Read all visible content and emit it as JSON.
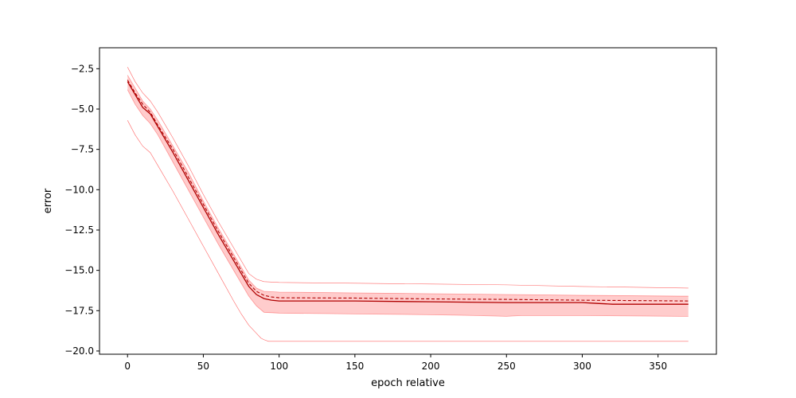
{
  "chart_data": {
    "type": "line",
    "title": "",
    "xlabel": "epoch relative",
    "ylabel": "error",
    "xlim": [
      -18.5,
      388.5
    ],
    "ylim": [
      -20.2,
      -1.2
    ],
    "xticks": [
      0,
      50,
      100,
      150,
      200,
      250,
      300,
      350
    ],
    "xtick_labels": [
      "0",
      "50",
      "100",
      "150",
      "200",
      "250",
      "300",
      "350"
    ],
    "yticks": [
      -2.5,
      -5.0,
      -7.5,
      -10.0,
      -12.5,
      -15.0,
      -17.5,
      -20.0
    ],
    "ytick_labels": [
      "−2.5",
      "−5.0",
      "−7.5",
      "−10.0",
      "−12.5",
      "−15.0",
      "−17.5",
      "−20.0"
    ],
    "grid": false,
    "legend": "none",
    "color": "#ff0000",
    "series": [
      {
        "role": "solid-line",
        "x": [
          0,
          5,
          10,
          15,
          20,
          30,
          40,
          50,
          60,
          70,
          80,
          85,
          90,
          95,
          100,
          120,
          150,
          200,
          250,
          300,
          310,
          320,
          330,
          350,
          370
        ],
        "y": [
          -3.3,
          -4.1,
          -4.9,
          -5.3,
          -6.1,
          -7.7,
          -9.4,
          -11.1,
          -12.8,
          -14.4,
          -16.0,
          -16.5,
          -16.75,
          -16.85,
          -16.9,
          -16.9,
          -16.9,
          -16.95,
          -17.0,
          -17.0,
          -17.05,
          -17.1,
          -17.1,
          -17.1,
          -17.1
        ]
      },
      {
        "role": "dashed-line",
        "x": [
          0,
          5,
          10,
          15,
          20,
          30,
          40,
          50,
          60,
          70,
          80,
          85,
          90,
          95,
          100,
          150,
          200,
          250,
          300,
          370
        ],
        "y": [
          -3.2,
          -4.0,
          -4.7,
          -5.2,
          -6.0,
          -7.5,
          -9.2,
          -10.9,
          -12.6,
          -14.2,
          -15.8,
          -16.3,
          -16.55,
          -16.65,
          -16.7,
          -16.72,
          -16.77,
          -16.8,
          -16.85,
          -16.9
        ]
      },
      {
        "role": "band-upper",
        "x": [
          0,
          5,
          10,
          15,
          20,
          30,
          40,
          50,
          60,
          70,
          80,
          85,
          90,
          100,
          150,
          200,
          250,
          300,
          365,
          370
        ],
        "y": [
          -2.9,
          -3.7,
          -4.5,
          -5.0,
          -5.7,
          -7.3,
          -8.9,
          -10.7,
          -12.4,
          -14.0,
          -15.6,
          -16.1,
          -16.3,
          -16.35,
          -16.4,
          -16.45,
          -16.5,
          -16.55,
          -16.6,
          -16.6
        ]
      },
      {
        "role": "band-lower",
        "x": [
          0,
          5,
          10,
          15,
          20,
          30,
          40,
          50,
          60,
          70,
          80,
          85,
          90,
          100,
          150,
          200,
          230,
          250,
          260,
          300,
          365,
          370
        ],
        "y": [
          -3.8,
          -4.7,
          -5.4,
          -5.9,
          -6.6,
          -8.3,
          -10.0,
          -11.7,
          -13.4,
          -15.0,
          -16.6,
          -17.2,
          -17.6,
          -17.65,
          -17.7,
          -17.75,
          -17.8,
          -17.85,
          -17.8,
          -17.8,
          -17.85,
          -17.85
        ]
      },
      {
        "role": "max-line",
        "x": [
          0,
          5,
          10,
          15,
          20,
          30,
          40,
          50,
          60,
          70,
          80,
          85,
          90,
          100,
          150,
          200,
          250,
          300,
          370
        ],
        "y": [
          -2.4,
          -3.3,
          -4.0,
          -4.5,
          -5.2,
          -6.8,
          -8.5,
          -10.3,
          -12.0,
          -13.6,
          -15.2,
          -15.55,
          -15.7,
          -15.75,
          -15.8,
          -15.85,
          -15.9,
          -16.0,
          -16.1
        ]
      },
      {
        "role": "min-line",
        "x": [
          0,
          5,
          10,
          15,
          20,
          30,
          40,
          50,
          60,
          70,
          75,
          80,
          85,
          88,
          90,
          93,
          95,
          100,
          200,
          300,
          370
        ],
        "y": [
          -5.7,
          -6.6,
          -7.3,
          -7.7,
          -8.5,
          -10.1,
          -11.8,
          -13.5,
          -15.2,
          -16.9,
          -17.7,
          -18.4,
          -18.9,
          -19.2,
          -19.3,
          -19.4,
          -19.4,
          -19.4,
          -19.4,
          -19.4,
          -19.4
        ]
      }
    ]
  }
}
